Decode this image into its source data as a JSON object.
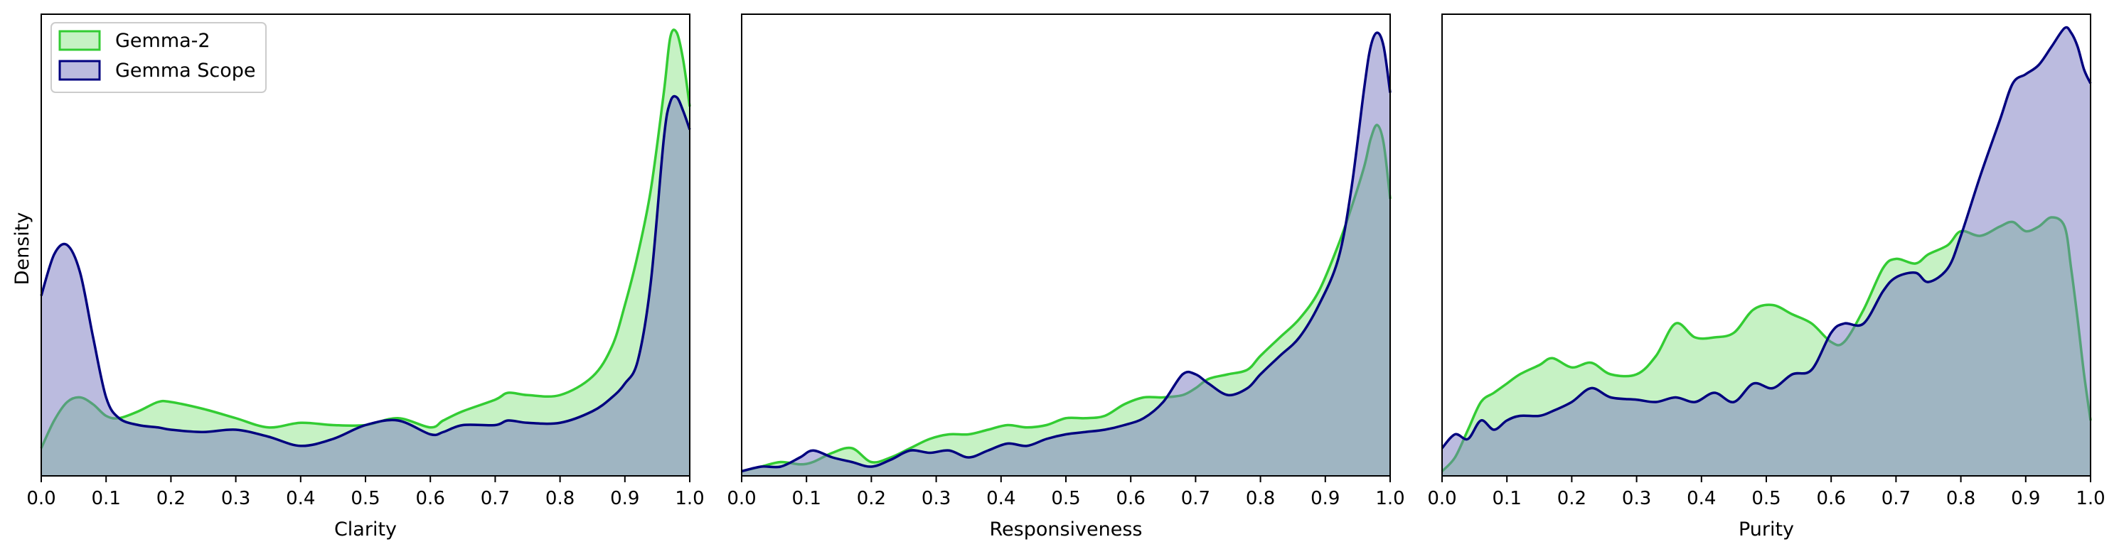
{
  "colors": {
    "gemma2_line": "#33cc33",
    "gemma2_fill": "#8ee58a",
    "scope_line": "#00007f",
    "scope_fill": "#7878c0",
    "overlap_note": "overlap appears grey-teal"
  },
  "legend": {
    "placement": "upper-left of first panel",
    "entries": [
      "Gemma-2",
      "Gemma Scope"
    ]
  },
  "shared": {
    "ylabel": "Density",
    "xlim": [
      0.0,
      1.0
    ],
    "xticks": [
      "0.0",
      "0.1",
      "0.2",
      "0.3",
      "0.4",
      "0.5",
      "0.6",
      "0.7",
      "0.8",
      "0.9",
      "1.0"
    ],
    "grid": false
  },
  "chart_data": [
    {
      "type": "area",
      "xlabel": "Clarity",
      "ylim": [
        0,
        1
      ],
      "x": [
        0.0,
        0.02,
        0.04,
        0.06,
        0.08,
        0.1,
        0.12,
        0.15,
        0.18,
        0.2,
        0.25,
        0.3,
        0.35,
        0.4,
        0.45,
        0.5,
        0.55,
        0.6,
        0.62,
        0.65,
        0.7,
        0.72,
        0.75,
        0.8,
        0.85,
        0.88,
        0.9,
        0.92,
        0.94,
        0.96,
        0.97,
        0.98,
        0.99,
        1.0
      ],
      "series": [
        {
          "name": "Gemma-2",
          "values": [
            0.06,
            0.12,
            0.16,
            0.17,
            0.155,
            0.13,
            0.125,
            0.14,
            0.16,
            0.16,
            0.145,
            0.125,
            0.105,
            0.115,
            0.11,
            0.11,
            0.125,
            0.105,
            0.12,
            0.14,
            0.165,
            0.18,
            0.175,
            0.175,
            0.215,
            0.28,
            0.37,
            0.48,
            0.62,
            0.83,
            0.95,
            0.96,
            0.9,
            0.8
          ]
        },
        {
          "name": "Gemma Scope",
          "values": [
            0.39,
            0.48,
            0.5,
            0.44,
            0.3,
            0.17,
            0.125,
            0.11,
            0.105,
            0.1,
            0.095,
            0.1,
            0.085,
            0.065,
            0.08,
            0.11,
            0.12,
            0.09,
            0.095,
            0.11,
            0.11,
            0.12,
            0.115,
            0.115,
            0.14,
            0.17,
            0.2,
            0.25,
            0.42,
            0.73,
            0.81,
            0.82,
            0.79,
            0.75
          ]
        }
      ]
    },
    {
      "type": "area",
      "xlabel": "Responsiveness",
      "ylim": [
        0,
        1
      ],
      "x": [
        0.0,
        0.03,
        0.06,
        0.09,
        0.11,
        0.14,
        0.17,
        0.2,
        0.23,
        0.26,
        0.29,
        0.32,
        0.35,
        0.38,
        0.41,
        0.44,
        0.47,
        0.5,
        0.53,
        0.56,
        0.59,
        0.62,
        0.65,
        0.68,
        0.7,
        0.72,
        0.75,
        0.78,
        0.8,
        0.83,
        0.86,
        0.89,
        0.92,
        0.94,
        0.96,
        0.97,
        0.98,
        0.99,
        1.0
      ],
      "series": [
        {
          "name": "Gemma-2",
          "values": [
            0.01,
            0.02,
            0.03,
            0.025,
            0.03,
            0.05,
            0.06,
            0.03,
            0.04,
            0.06,
            0.08,
            0.09,
            0.09,
            0.1,
            0.11,
            0.105,
            0.11,
            0.125,
            0.125,
            0.13,
            0.155,
            0.17,
            0.17,
            0.175,
            0.19,
            0.21,
            0.22,
            0.23,
            0.26,
            0.3,
            0.34,
            0.4,
            0.5,
            0.58,
            0.67,
            0.73,
            0.76,
            0.72,
            0.6
          ]
        },
        {
          "name": "Gemma Scope",
          "values": [
            0.01,
            0.02,
            0.02,
            0.04,
            0.055,
            0.04,
            0.03,
            0.02,
            0.035,
            0.055,
            0.05,
            0.055,
            0.04,
            0.055,
            0.07,
            0.065,
            0.08,
            0.09,
            0.095,
            0.1,
            0.11,
            0.125,
            0.16,
            0.22,
            0.22,
            0.2,
            0.175,
            0.19,
            0.22,
            0.26,
            0.3,
            0.37,
            0.47,
            0.62,
            0.84,
            0.93,
            0.96,
            0.93,
            0.83
          ]
        }
      ]
    },
    {
      "type": "area",
      "xlabel": "Purity",
      "ylim": [
        0,
        1
      ],
      "x": [
        0.0,
        0.02,
        0.04,
        0.06,
        0.08,
        0.1,
        0.12,
        0.15,
        0.17,
        0.2,
        0.23,
        0.26,
        0.3,
        0.33,
        0.36,
        0.39,
        0.42,
        0.45,
        0.48,
        0.51,
        0.54,
        0.57,
        0.6,
        0.62,
        0.65,
        0.68,
        0.7,
        0.73,
        0.75,
        0.78,
        0.8,
        0.83,
        0.86,
        0.88,
        0.9,
        0.92,
        0.94,
        0.96,
        0.97,
        0.98,
        0.99,
        1.0
      ],
      "series": [
        {
          "name": "Gemma-2",
          "values": [
            0.01,
            0.04,
            0.1,
            0.16,
            0.18,
            0.2,
            0.22,
            0.24,
            0.255,
            0.235,
            0.245,
            0.22,
            0.22,
            0.26,
            0.33,
            0.3,
            0.3,
            0.31,
            0.36,
            0.37,
            0.35,
            0.33,
            0.29,
            0.29,
            0.36,
            0.45,
            0.47,
            0.46,
            0.48,
            0.5,
            0.53,
            0.52,
            0.54,
            0.55,
            0.53,
            0.54,
            0.56,
            0.54,
            0.45,
            0.34,
            0.22,
            0.12
          ]
        },
        {
          "name": "Gemma Scope",
          "values": [
            0.06,
            0.09,
            0.08,
            0.12,
            0.1,
            0.12,
            0.13,
            0.13,
            0.14,
            0.16,
            0.19,
            0.17,
            0.165,
            0.16,
            0.17,
            0.16,
            0.18,
            0.16,
            0.2,
            0.19,
            0.22,
            0.23,
            0.31,
            0.33,
            0.33,
            0.4,
            0.43,
            0.44,
            0.42,
            0.45,
            0.52,
            0.65,
            0.77,
            0.85,
            0.87,
            0.89,
            0.93,
            0.97,
            0.96,
            0.93,
            0.88,
            0.85
          ]
        }
      ]
    }
  ]
}
